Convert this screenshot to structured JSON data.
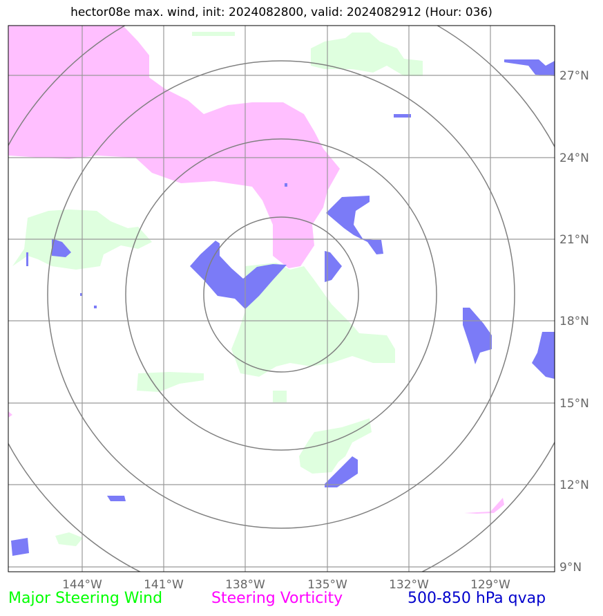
{
  "title": "hector08e max. wind, init: 2024082800, valid: 2024082912 (Hour: 036)",
  "lon_labels": [
    "144°W",
    "141°W",
    "138°W",
    "135°W",
    "132°W",
    "129°W"
  ],
  "lat_labels": [
    "27°N",
    "24°N",
    "21°N",
    "18°N",
    "15°N",
    "12°N",
    "9°N"
  ],
  "legend": [
    {
      "label": "Major Steering Wind",
      "color": "#00ff00"
    },
    {
      "label": "Steering Vorticity",
      "color": "#ff00ff"
    },
    {
      "label": "500-850 hPa qvap",
      "color": "#0000cc"
    }
  ],
  "colors": {
    "steering_wind_fill": "#dfffdf",
    "vorticity_fill": "#ffbfff",
    "qvap_fill": "#7b7bf7",
    "gridline": "#999999",
    "range_ring": "#808080"
  }
}
